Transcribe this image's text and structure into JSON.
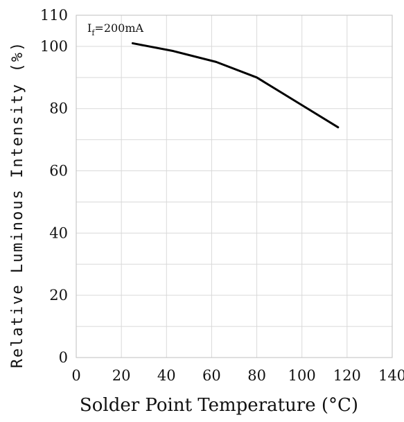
{
  "chart_data": {
    "type": "line",
    "xlabel": "Solder Point Temperature (°C)",
    "ylabel": "Relative Luminous Intensity (%)",
    "annotation": {
      "main": "I",
      "sub": "f",
      "rest": "=200mA"
    },
    "xlim": [
      0,
      140
    ],
    "ylim": [
      0,
      110
    ],
    "x_ticks": [
      0,
      20,
      40,
      60,
      80,
      100,
      120,
      140
    ],
    "y_ticks": [
      0,
      20,
      40,
      60,
      80,
      100,
      110
    ],
    "y_grid": [
      0,
      10,
      20,
      30,
      40,
      50,
      60,
      70,
      80,
      90,
      100,
      110
    ],
    "grid": true,
    "series": [
      {
        "x": [
          25,
          43,
          62,
          80,
          98,
          116
        ],
        "y": [
          101,
          98.5,
          95,
          90,
          82,
          74
        ]
      }
    ],
    "line_color": "#000000"
  }
}
